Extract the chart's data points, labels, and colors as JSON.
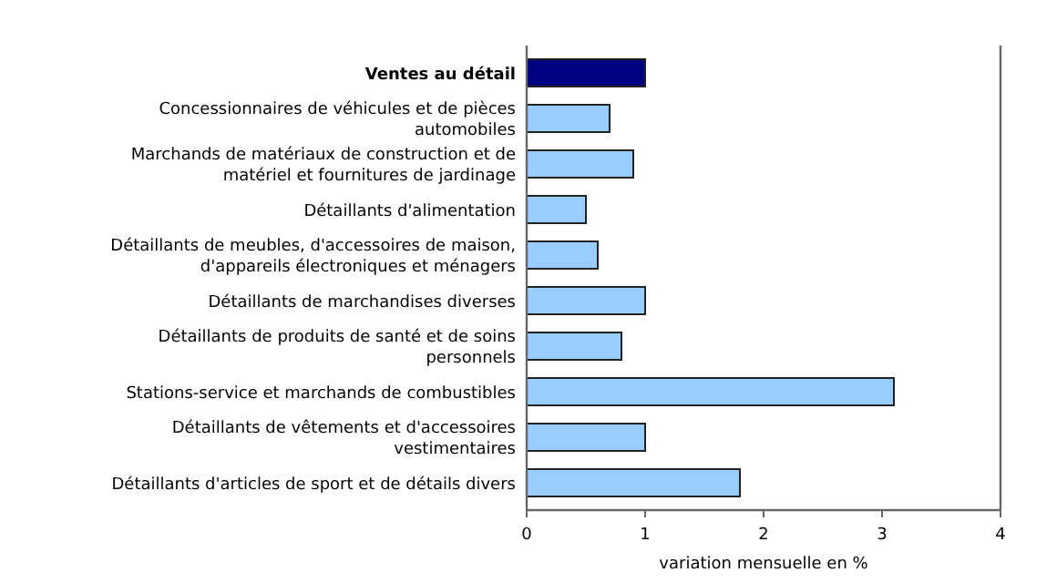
{
  "chart_data": {
    "type": "bar",
    "orientation": "horizontal",
    "xlabel": "variation mensuelle en %",
    "categories": [
      "Ventes au détail",
      "Concessionnaires de véhicules et de pièces automobiles",
      "Marchands de matériaux de construction et de matériel et fournitures de jardinage",
      "Détaillants d'alimentation",
      "Détaillants de meubles, d'accessoires de maison, d'appareils électroniques et ménagers",
      "Détaillants de marchandises diverses",
      "Détaillants de produits de santé et de soins personnels",
      "Stations-service et marchands de combustibles",
      "Détaillants de vêtements et d'accessoires vestimentaires",
      "Détaillants d'articles de sport et de détails divers"
    ],
    "values": [
      1.0,
      0.7,
      0.9,
      0.5,
      0.6,
      1.0,
      0.8,
      3.1,
      1.0,
      1.8
    ],
    "colors": [
      "#000080",
      "#99ccff",
      "#99ccff",
      "#99ccff",
      "#99ccff",
      "#99ccff",
      "#99ccff",
      "#99ccff",
      "#99ccff",
      "#99ccff"
    ],
    "xlim": [
      0,
      4
    ],
    "xticks": [
      0,
      1,
      2,
      3,
      4
    ],
    "grid": false
  }
}
